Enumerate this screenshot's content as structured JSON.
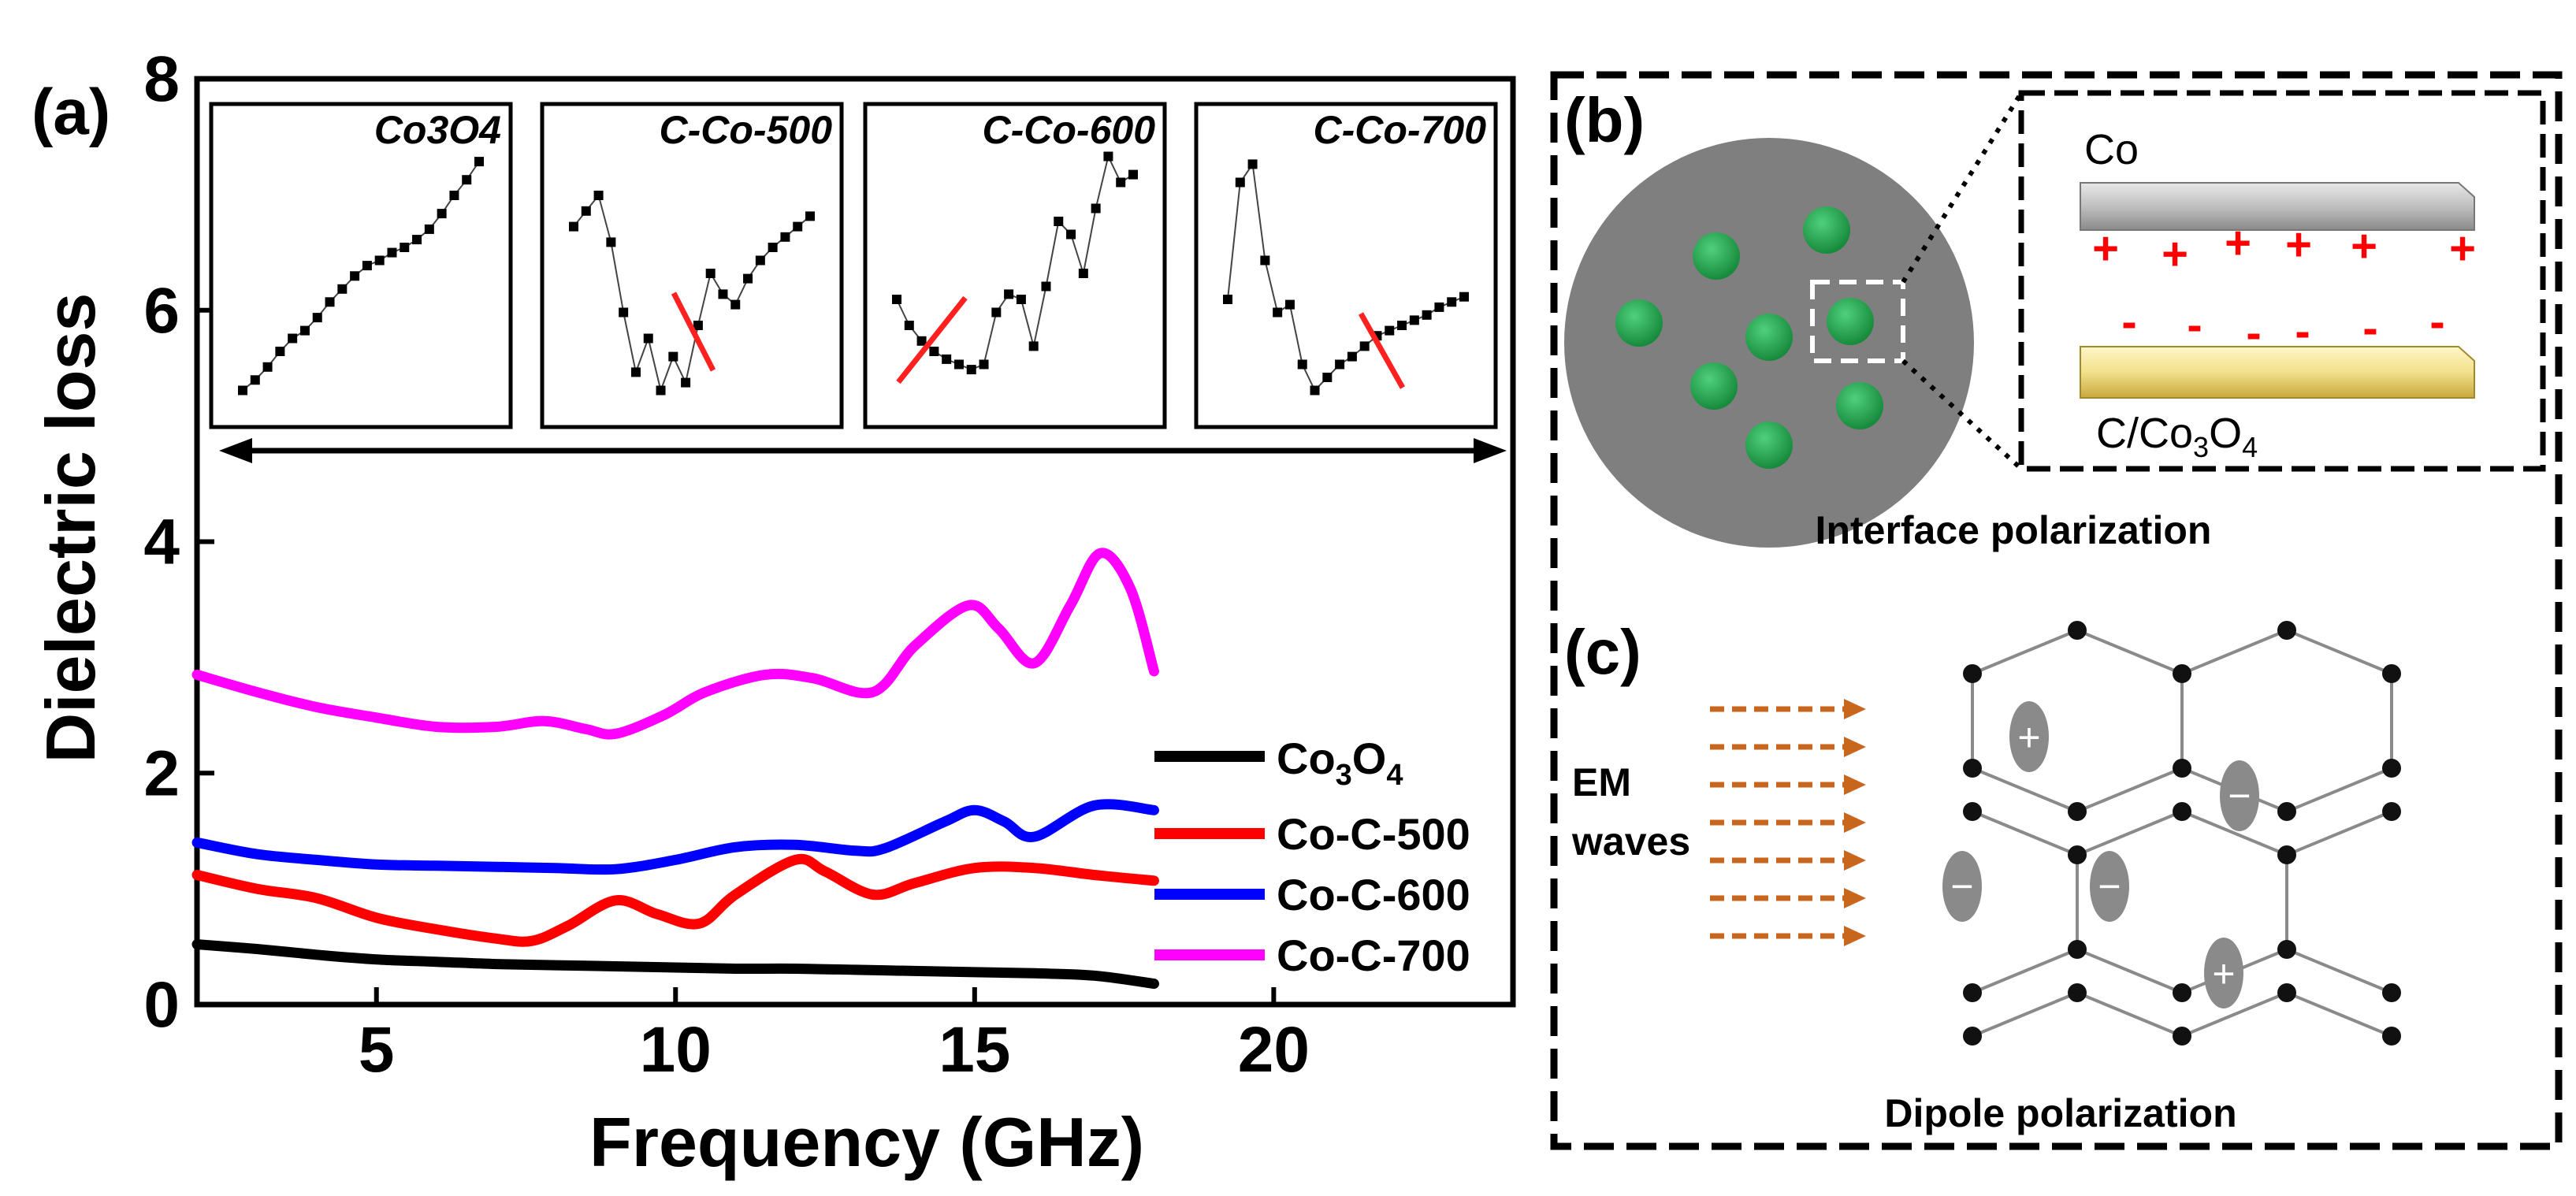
{
  "colors": {
    "co3o4": "#000000",
    "coc500": "#ff0000",
    "coc600": "#0000ff",
    "coc700": "#ff00ff",
    "particle": "#1fa84e",
    "sphere": "#7f7f7f",
    "arrow": "#c8661e",
    "red_mark": "#ff2020"
  },
  "panel_a": {
    "label": "(a)",
    "xlabel": "Frequency (GHz)",
    "ylabel": "Dielectric loss",
    "xticks": [
      "5",
      "10",
      "15",
      "20"
    ],
    "yticks": [
      "0",
      "2",
      "4",
      "6",
      "8"
    ],
    "legend": [
      {
        "name": "Co3O4",
        "main": "Co",
        "sub1": "3",
        "mid": "O",
        "sub2": "4"
      },
      {
        "name": "Co-C-500"
      },
      {
        "name": "Co-C-600"
      },
      {
        "name": "Co-C-700"
      }
    ],
    "insets": [
      "Co3O4",
      "C-Co-500",
      "C-Co-600",
      "C-Co-700"
    ]
  },
  "chart_data": [
    {
      "type": "line",
      "title": "",
      "xlabel": "Frequency (GHz)",
      "ylabel": "Dielectric loss",
      "xlim": [
        2,
        24
      ],
      "ylim": [
        0,
        8
      ],
      "series": [
        {
          "name": "Co3O4",
          "x": [
            2,
            3,
            4,
            5,
            6,
            7,
            8,
            9,
            10,
            11,
            12,
            13,
            14,
            15,
            16,
            17,
            18
          ],
          "values": [
            0.52,
            0.48,
            0.43,
            0.39,
            0.37,
            0.35,
            0.34,
            0.33,
            0.32,
            0.31,
            0.31,
            0.3,
            0.29,
            0.28,
            0.27,
            0.25,
            0.18
          ]
        },
        {
          "name": "Co-C-500",
          "x": [
            2,
            3,
            4,
            5,
            6,
            7,
            7.6,
            8.2,
            9,
            9.7,
            10.4,
            11,
            12,
            12.5,
            13.3,
            14,
            15,
            16,
            17,
            18
          ],
          "values": [
            1.12,
            1.0,
            0.92,
            0.75,
            0.65,
            0.57,
            0.55,
            0.68,
            0.9,
            0.78,
            0.7,
            0.95,
            1.25,
            1.15,
            0.95,
            1.05,
            1.18,
            1.18,
            1.12,
            1.07
          ]
        },
        {
          "name": "Co-C-600",
          "x": [
            2,
            3,
            4,
            5,
            6,
            7,
            8,
            9,
            10,
            11,
            12,
            13,
            13.5,
            14.5,
            15,
            15.5,
            16,
            17,
            18
          ],
          "values": [
            1.4,
            1.3,
            1.25,
            1.21,
            1.2,
            1.19,
            1.18,
            1.17,
            1.25,
            1.36,
            1.38,
            1.33,
            1.35,
            1.58,
            1.68,
            1.58,
            1.45,
            1.72,
            1.68
          ]
        },
        {
          "name": "Co-C-700",
          "x": [
            2,
            3,
            4,
            5,
            6,
            7,
            7.8,
            8.5,
            9,
            9.8,
            10.5,
            11.5,
            12.3,
            13.3,
            14,
            14.9,
            15.4,
            16,
            16.6,
            17.1,
            17.6,
            18
          ],
          "values": [
            2.85,
            2.7,
            2.57,
            2.48,
            2.4,
            2.4,
            2.45,
            2.38,
            2.34,
            2.5,
            2.7,
            2.85,
            2.82,
            2.7,
            3.1,
            3.45,
            3.25,
            2.95,
            3.45,
            3.9,
            3.6,
            2.88
          ]
        }
      ]
    },
    {
      "type": "scatter",
      "title": "Co3O4",
      "x": [
        0,
        1,
        2,
        3,
        4,
        5,
        6,
        7,
        8,
        9,
        10,
        11,
        12,
        13,
        14,
        15,
        16,
        17,
        18,
        19
      ],
      "values": [
        0.05,
        0.09,
        0.14,
        0.2,
        0.25,
        0.28,
        0.33,
        0.39,
        0.44,
        0.49,
        0.53,
        0.55,
        0.58,
        0.6,
        0.63,
        0.67,
        0.73,
        0.8,
        0.86,
        0.93
      ]
    },
    {
      "type": "scatter",
      "title": "C-Co-500",
      "x": [
        0,
        1,
        2,
        3,
        4,
        5,
        6,
        7,
        8,
        9,
        10,
        11,
        12,
        13,
        14,
        15,
        16,
        17,
        18,
        19
      ],
      "values": [
        0.68,
        0.74,
        0.8,
        0.62,
        0.35,
        0.12,
        0.25,
        0.05,
        0.18,
        0.08,
        0.3,
        0.5,
        0.42,
        0.38,
        0.48,
        0.55,
        0.6,
        0.64,
        0.68,
        0.72
      ]
    },
    {
      "type": "scatter",
      "title": "C-Co-600",
      "x": [
        0,
        1,
        2,
        3,
        4,
        5,
        6,
        7,
        8,
        9,
        10,
        11,
        12,
        13,
        14,
        15,
        16,
        17,
        18,
        19
      ],
      "values": [
        0.4,
        0.3,
        0.24,
        0.2,
        0.17,
        0.15,
        0.13,
        0.15,
        0.35,
        0.42,
        0.4,
        0.22,
        0.45,
        0.7,
        0.65,
        0.5,
        0.75,
        0.95,
        0.85,
        0.88
      ]
    },
    {
      "type": "scatter",
      "title": "C-Co-700",
      "x": [
        0,
        1,
        2,
        3,
        4,
        5,
        6,
        7,
        8,
        9,
        10,
        11,
        12,
        13,
        14,
        15,
        16,
        17,
        18,
        19
      ],
      "values": [
        0.4,
        0.85,
        0.92,
        0.55,
        0.35,
        0.38,
        0.15,
        0.05,
        0.1,
        0.15,
        0.18,
        0.22,
        0.26,
        0.28,
        0.3,
        0.32,
        0.34,
        0.37,
        0.39,
        0.41
      ]
    }
  ],
  "panel_b": {
    "label": "(b)",
    "co": "Co",
    "plus": "+",
    "minus": "-",
    "bottom_main": "C/Co",
    "bottom_sub": "3",
    "bottom_o": "O",
    "bottom_sub2": "4",
    "caption": "Interface polarization"
  },
  "panel_c": {
    "label": "(c)",
    "em_line1": "EM",
    "em_line2": "waves",
    "plus": "+",
    "minus": "−",
    "caption": "Dipole polarization"
  }
}
